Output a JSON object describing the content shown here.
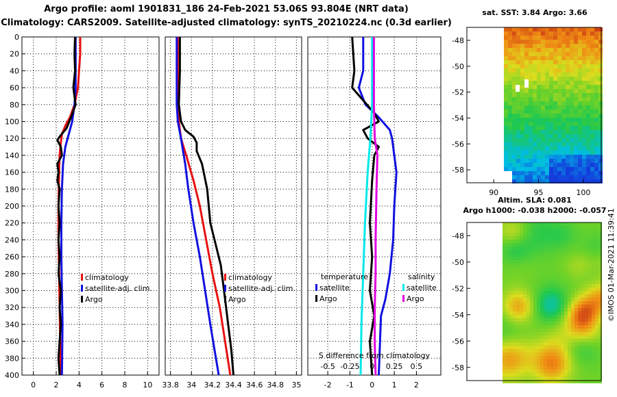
{
  "title_line1": "Argo profile: aoml 1901831_186 24-Feb-2021 53.06S 93.804E (NRT data)",
  "title_line2": "Climatology: CARS2009. Satellite-adjusted climatology: synTS_20210224.nc (0.3d earlier)",
  "sst_title": "sat. SST: 3.84 Argo: 3.66",
  "sla_title1": "Altim. SLA: 0.081",
  "sla_title2": "Argo h1000: -0.038 h2000: -0.057",
  "credit": "©IMOS 01-Mar-2021 11:39:41",
  "colors": {
    "climatology": "#e81010",
    "satellite": "#1010e0",
    "argo": "#000000",
    "cyan": "#00e8e8",
    "magenta": "#e000e0"
  },
  "chart_data": [
    {
      "type": "line",
      "name": "temperature-profile",
      "xlim": [
        -1,
        11
      ],
      "ylim": [
        400,
        0
      ],
      "xticks": [
        0,
        2,
        4,
        6,
        8,
        10
      ],
      "ylabel_ticks": [
        0,
        20,
        40,
        60,
        80,
        100,
        120,
        140,
        160,
        180,
        200,
        220,
        240,
        260,
        280,
        300,
        320,
        340,
        360,
        380,
        400
      ],
      "legend": [
        "climatology",
        "satellite-adj. clim.",
        "Argo"
      ],
      "series": [
        {
          "name": "climatology",
          "color": "#e81010",
          "points": [
            [
              4.1,
              0
            ],
            [
              4.1,
              20
            ],
            [
              4.0,
              40
            ],
            [
              3.9,
              60
            ],
            [
              3.6,
              80
            ],
            [
              3.2,
              95
            ],
            [
              2.8,
              105
            ],
            [
              2.5,
              115
            ],
            [
              2.4,
              125
            ],
            [
              2.3,
              140
            ],
            [
              2.25,
              160
            ],
            [
              2.2,
              200
            ],
            [
              2.2,
              240
            ],
            [
              2.25,
              280
            ],
            [
              2.3,
              320
            ],
            [
              2.35,
              360
            ],
            [
              2.4,
              400
            ]
          ]
        },
        {
          "name": "satellite-adj. clim.",
          "color": "#1010e0",
          "points": [
            [
              3.7,
              0
            ],
            [
              3.7,
              30
            ],
            [
              3.7,
              60
            ],
            [
              3.6,
              80
            ],
            [
              3.4,
              100
            ],
            [
              3.1,
              115
            ],
            [
              2.8,
              130
            ],
            [
              2.6,
              150
            ],
            [
              2.5,
              180
            ],
            [
              2.45,
              220
            ],
            [
              2.45,
              260
            ],
            [
              2.5,
              300
            ],
            [
              2.55,
              340
            ],
            [
              2.5,
              400
            ]
          ]
        },
        {
          "name": "Argo",
          "color": "#000000",
          "points": [
            [
              3.65,
              0
            ],
            [
              3.6,
              20
            ],
            [
              3.65,
              40
            ],
            [
              3.5,
              60
            ],
            [
              3.7,
              80
            ],
            [
              3.3,
              95
            ],
            [
              2.9,
              108
            ],
            [
              2.3,
              118
            ],
            [
              2.1,
              122
            ],
            [
              2.4,
              130
            ],
            [
              2.5,
              140
            ],
            [
              2.1,
              150
            ],
            [
              2.2,
              160
            ],
            [
              2.1,
              170
            ],
            [
              2.3,
              180
            ],
            [
              2.2,
              200
            ],
            [
              2.3,
              220
            ],
            [
              2.2,
              240
            ],
            [
              2.3,
              260
            ],
            [
              2.2,
              280
            ],
            [
              2.4,
              300
            ],
            [
              2.3,
              320
            ],
            [
              2.4,
              340
            ],
            [
              2.3,
              360
            ],
            [
              2.2,
              380
            ],
            [
              2.3,
              400
            ]
          ]
        }
      ]
    },
    {
      "type": "line",
      "name": "salinity-profile",
      "xlim": [
        33.75,
        35.05
      ],
      "ylim": [
        400,
        0
      ],
      "xticks": [
        33.8,
        34,
        34.2,
        34.4,
        34.6,
        34.8,
        35
      ],
      "xtick_labels": [
        "33.8",
        "34",
        "34.2",
        "34.4",
        "34.6",
        "34.8",
        "35"
      ],
      "legend": [
        "climatology",
        "satellite-adj. clim.",
        "Argo"
      ],
      "series": [
        {
          "name": "climatology",
          "color": "#e81010",
          "points": [
            [
              33.87,
              0
            ],
            [
              33.87,
              40
            ],
            [
              33.87,
              80
            ],
            [
              33.88,
              100
            ],
            [
              33.9,
              120
            ],
            [
              33.95,
              140
            ],
            [
              34.02,
              170
            ],
            [
              34.08,
              200
            ],
            [
              34.14,
              240
            ],
            [
              34.2,
              280
            ],
            [
              34.27,
              320
            ],
            [
              34.32,
              360
            ],
            [
              34.37,
              400
            ]
          ]
        },
        {
          "name": "satellite-adj. clim.",
          "color": "#1010e0",
          "points": [
            [
              33.86,
              0
            ],
            [
              33.86,
              40
            ],
            [
              33.86,
              80
            ],
            [
              33.87,
              100
            ],
            [
              33.9,
              120
            ],
            [
              33.94,
              150
            ],
            [
              33.97,
              180
            ],
            [
              34.02,
              220
            ],
            [
              34.08,
              260
            ],
            [
              34.13,
              300
            ],
            [
              34.18,
              340
            ],
            [
              34.22,
              370
            ],
            [
              34.26,
              400
            ]
          ]
        },
        {
          "name": "Argo",
          "color": "#000000",
          "points": [
            [
              33.89,
              0
            ],
            [
              33.89,
              40
            ],
            [
              33.88,
              80
            ],
            [
              33.9,
              100
            ],
            [
              33.94,
              110
            ],
            [
              34.02,
              118
            ],
            [
              34.05,
              125
            ],
            [
              34.05,
              135
            ],
            [
              34.1,
              150
            ],
            [
              34.15,
              180
            ],
            [
              34.18,
              220
            ],
            [
              34.24,
              250
            ],
            [
              34.28,
              270
            ],
            [
              34.3,
              290
            ],
            [
              34.33,
              320
            ],
            [
              34.35,
              340
            ],
            [
              34.38,
              370
            ],
            [
              34.4,
              400
            ]
          ]
        }
      ]
    },
    {
      "type": "line",
      "name": "difference-profile",
      "xlim": [
        -2.9,
        3.1
      ],
      "xlim_salinity": [
        -0.725,
        0.775
      ],
      "ylim": [
        400,
        0
      ],
      "xticks": [
        -2,
        -1,
        0,
        1,
        2
      ],
      "secondary_xticks": [
        "-0.5",
        "-0.25",
        "0",
        "0.25",
        "0.5"
      ],
      "secondary_xlabel": "S difference from climatology",
      "legend_temperature": {
        "title": "temperature",
        "entries": [
          "satellite",
          "Argo"
        ]
      },
      "legend_salinity": {
        "title": "salinity",
        "entries": [
          "satellite",
          "Argo"
        ]
      },
      "series": [
        {
          "name": "T satellite",
          "color": "#1010e0",
          "units": "degC",
          "points": [
            [
              -0.4,
              0
            ],
            [
              -0.4,
              40
            ],
            [
              -0.6,
              60
            ],
            [
              -0.3,
              80
            ],
            [
              0.3,
              95
            ],
            [
              0.8,
              110
            ],
            [
              0.9,
              120
            ],
            [
              1.0,
              140
            ],
            [
              1.1,
              160
            ],
            [
              1.0,
              200
            ],
            [
              0.95,
              240
            ],
            [
              0.8,
              280
            ],
            [
              0.6,
              310
            ],
            [
              0.4,
              330
            ],
            [
              0.3,
              400
            ]
          ]
        },
        {
          "name": "T Argo",
          "color": "#000000",
          "units": "degC",
          "points": [
            [
              -0.9,
              0
            ],
            [
              -0.8,
              40
            ],
            [
              -0.9,
              60
            ],
            [
              -0.4,
              75
            ],
            [
              0.1,
              90
            ],
            [
              0.3,
              100
            ],
            [
              -0.4,
              110
            ],
            [
              -0.2,
              120
            ],
            [
              0.3,
              130
            ],
            [
              0.1,
              140
            ],
            [
              0.0,
              170
            ],
            [
              -0.1,
              220
            ],
            [
              0.0,
              260
            ],
            [
              -0.1,
              300
            ],
            [
              0.1,
              330
            ],
            [
              -0.1,
              360
            ],
            [
              0.0,
              400
            ]
          ]
        },
        {
          "name": "S satellite",
          "color": "#00e8e8",
          "units": "PSU",
          "points": [
            [
              0.0,
              0
            ],
            [
              0.0,
              80
            ],
            [
              -0.02,
              120
            ],
            [
              -0.05,
              160
            ],
            [
              -0.08,
              220
            ],
            [
              -0.1,
              280
            ],
            [
              -0.12,
              340
            ],
            [
              -0.13,
              400
            ]
          ]
        },
        {
          "name": "S Argo",
          "color": "#e000e0",
          "units": "PSU",
          "points": [
            [
              0.02,
              0
            ],
            [
              0.02,
              80
            ],
            [
              0.03,
              120
            ],
            [
              0.06,
              140
            ],
            [
              0.05,
              180
            ],
            [
              0.04,
              240
            ],
            [
              0.04,
              280
            ],
            [
              0.03,
              320
            ],
            [
              0.03,
              360
            ],
            [
              0.04,
              400
            ]
          ]
        }
      ]
    },
    {
      "type": "heatmap",
      "name": "sst-map",
      "title": "sat. SST: 3.84 Argo: 3.66",
      "xlim": [
        87,
        102
      ],
      "ylim": [
        -59,
        -47
      ],
      "xticks": [
        90,
        95,
        100
      ],
      "yticks": [
        -48,
        -50,
        -52,
        -54,
        -56,
        -58
      ]
    },
    {
      "type": "heatmap",
      "name": "sla-map",
      "title": "Altim. SLA: 0.081",
      "ylim": [
        -59,
        -47
      ],
      "yticks": [
        -48,
        -50,
        -52,
        -54,
        -56,
        -58
      ]
    }
  ]
}
